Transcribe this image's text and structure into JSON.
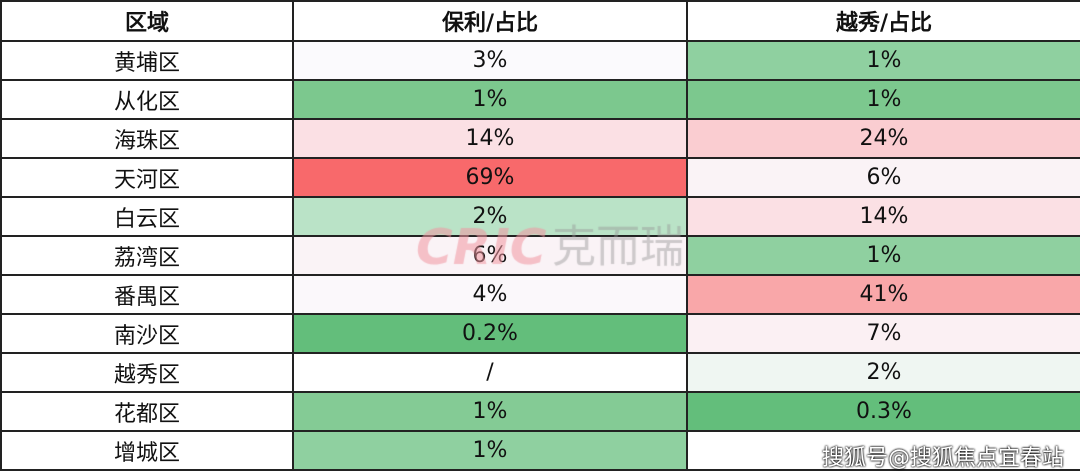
{
  "headers": [
    "区域",
    "保利/占比",
    "越秀/占比"
  ],
  "rows": [
    {
      "region": "黄埔区",
      "poly": "3%",
      "poly_color": "#fbfafd",
      "yuexiu": "1%",
      "yuexiu_color": "#8fd0a0"
    },
    {
      "region": "从化区",
      "poly": "1%",
      "poly_color": "#7cc88e",
      "yuexiu": "1%",
      "yuexiu_color": "#7cc88e"
    },
    {
      "region": "海珠区",
      "poly": "14%",
      "poly_color": "#fbe0e4",
      "yuexiu": "24%",
      "yuexiu_color": "#facdd1"
    },
    {
      "region": "天河区",
      "poly": "69%",
      "poly_color": "#f8696b",
      "yuexiu": "6%",
      "yuexiu_color": "#faf3f6"
    },
    {
      "region": "白云区",
      "poly": "2%",
      "poly_color": "#bae3c7",
      "yuexiu": "14%",
      "yuexiu_color": "#fbe0e4"
    },
    {
      "region": "荔湾区",
      "poly": "6%",
      "poly_color": "#faf3f6",
      "yuexiu": "1%",
      "yuexiu_color": "#8fd0a0"
    },
    {
      "region": "番禺区",
      "poly": "4%",
      "poly_color": "#fbf8fb",
      "yuexiu": "41%",
      "yuexiu_color": "#f9a7a9"
    },
    {
      "region": "南沙区",
      "poly": "0.2%",
      "poly_color": "#63be7b",
      "yuexiu": "7%",
      "yuexiu_color": "#fbf0f3"
    },
    {
      "region": "越秀区",
      "poly": "/",
      "poly_color": "#ffffff",
      "yuexiu": "2%",
      "yuexiu_color": "#eff6f2"
    },
    {
      "region": "花都区",
      "poly": "1%",
      "poly_color": "#84cb95",
      "yuexiu": "0.3%",
      "yuexiu_color": "#63be7b"
    },
    {
      "region": "增城区",
      "poly": "1%",
      "poly_color": "#8fd0a0",
      "yuexiu": "",
      "yuexiu_color": "#ffffff"
    }
  ],
  "watermark": {
    "logo_latin": "CRIC",
    "logo_cn": "克而瑞",
    "sohu": "搜狐号@搜狐焦点宜春站"
  }
}
